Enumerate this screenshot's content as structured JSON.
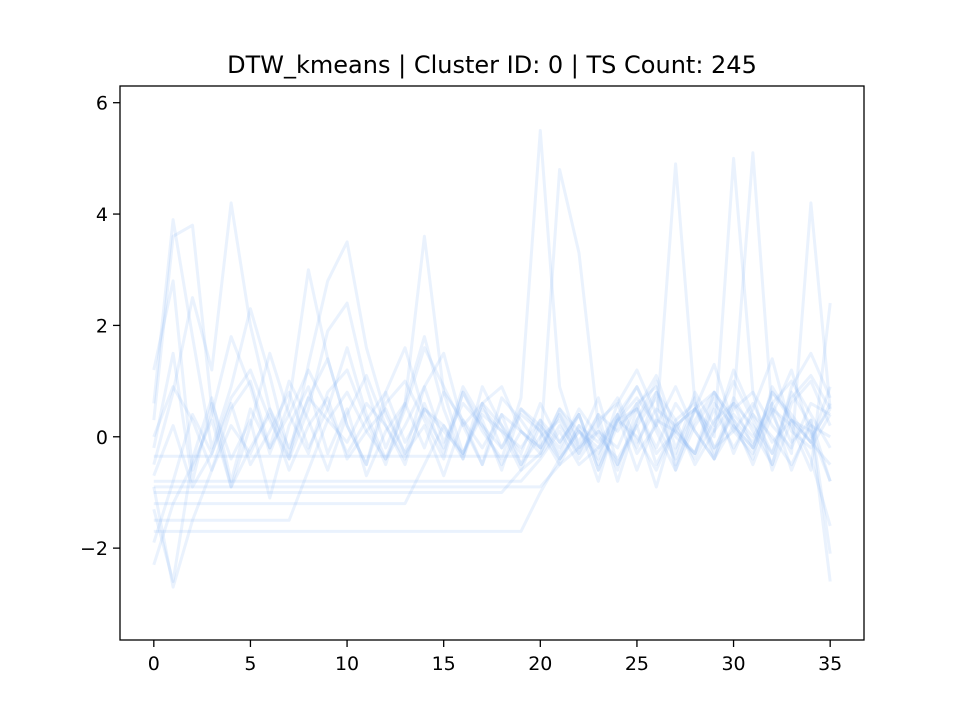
{
  "chart_data": {
    "type": "line",
    "title": "DTW_kmeans | Cluster ID: 0 | TS Count: 245",
    "xlabel": "",
    "ylabel": "",
    "xlim": [
      -1.75,
      36.75
    ],
    "ylim": [
      -3.65,
      6.3
    ],
    "xticks": [
      0,
      5,
      10,
      15,
      20,
      25,
      30,
      35
    ],
    "yticks": [
      -2,
      0,
      2,
      4,
      6
    ],
    "xtick_labels": [
      "0",
      "5",
      "10",
      "15",
      "20",
      "25",
      "30",
      "35"
    ],
    "ytick_labels": [
      "−2",
      "0",
      "2",
      "4",
      "6"
    ],
    "x": [
      0,
      1,
      2,
      3,
      4,
      5,
      6,
      7,
      8,
      9,
      10,
      11,
      12,
      13,
      14,
      15,
      16,
      17,
      18,
      19,
      20,
      21,
      22,
      23,
      24,
      25,
      26,
      27,
      28,
      29,
      30,
      31,
      32,
      33,
      34,
      35
    ],
    "line_color": "#8ab6f5",
    "line_alpha": 0.1,
    "grid": false,
    "legend": "none",
    "series": [
      {
        "values": [
          -0.35,
          -0.35,
          -0.35,
          -0.35,
          -0.35,
          -0.35,
          -0.35,
          -0.35,
          -0.35,
          -0.35,
          -0.35,
          -0.35,
          -0.35,
          -0.35,
          -0.35,
          -0.35,
          -0.35,
          -0.35,
          -0.35,
          -0.35,
          -0.35,
          0.2,
          -0.3,
          0.4,
          0.1,
          0.6,
          0.9,
          -0.2,
          0.5,
          0.8,
          0.3,
          -0.1,
          0.6,
          1.0,
          0.4,
          -0.2
        ]
      },
      {
        "values": [
          -0.8,
          -0.8,
          -0.8,
          -0.8,
          -0.8,
          -0.8,
          -0.8,
          -0.8,
          -0.8,
          -0.8,
          -0.8,
          -0.8,
          -0.8,
          -0.8,
          -0.8,
          -0.8,
          -0.8,
          -0.8,
          -0.8,
          -0.8,
          -0.4,
          0.1,
          -0.5,
          -0.2,
          0.3,
          0.7,
          0.2,
          -0.4,
          0.5,
          0.1,
          1.2,
          0.4,
          -0.3,
          0.8,
          0.2,
          0.0
        ]
      },
      {
        "values": [
          -1.0,
          -1.0,
          -1.0,
          -1.0,
          -1.0,
          -1.0,
          -1.0,
          -1.0,
          -1.0,
          -1.0,
          -1.0,
          -1.0,
          -1.0,
          -1.0,
          -1.0,
          -1.0,
          -1.0,
          -1.0,
          -1.0,
          -0.6,
          -0.3,
          0.4,
          -0.2,
          0.1,
          -0.5,
          0.3,
          0.8,
          0.0,
          -0.3,
          0.6,
          0.2,
          -0.4,
          0.9,
          0.3,
          -0.1,
          -0.5
        ]
      },
      {
        "values": [
          -1.2,
          -1.2,
          -1.2,
          -1.2,
          -1.2,
          -1.2,
          -1.2,
          -1.2,
          -1.2,
          -1.2,
          -1.2,
          -1.2,
          -1.2,
          -1.2,
          -0.5,
          0.2,
          -0.3,
          0.5,
          0.1,
          -0.2,
          0.3,
          -0.1,
          0.4,
          -0.6,
          0.2,
          0.5,
          -0.3,
          0.1,
          0.7,
          -0.2,
          0.4,
          0.0,
          0.6,
          -0.1,
          0.3,
          -0.8
        ]
      },
      {
        "values": [
          -1.5,
          -1.5,
          -1.5,
          -1.5,
          -1.5,
          -1.5,
          -1.5,
          -1.5,
          -0.6,
          0.3,
          0.8,
          0.1,
          -0.4,
          0.5,
          1.6,
          0.9,
          0.2,
          0.6,
          -0.2,
          0.4,
          0.1,
          -0.5,
          -0.2,
          0.3,
          0.6,
          -0.3,
          0.2,
          0.9,
          0.1,
          -0.4,
          0.5,
          0.8,
          0.2,
          -0.2,
          0.6,
          0.4
        ]
      },
      {
        "values": [
          -0.9,
          -0.9,
          -0.9,
          -0.9,
          -0.9,
          -0.9,
          -0.9,
          -0.9,
          -0.9,
          -0.9,
          -0.9,
          -0.9,
          -0.9,
          -0.9,
          -0.9,
          -0.9,
          -0.9,
          -0.9,
          -0.9,
          -0.9,
          -0.9,
          -0.5,
          0.2,
          -0.1,
          0.4,
          -0.2,
          0.8,
          0.3,
          -0.5,
          0.1,
          0.6,
          0.2,
          -0.3,
          0.7,
          1.1,
          0.5
        ]
      },
      {
        "values": [
          -1.7,
          -1.7,
          -1.7,
          -1.7,
          -1.7,
          -1.7,
          -1.7,
          -1.7,
          -1.7,
          -1.7,
          -1.7,
          -1.7,
          -1.7,
          -1.7,
          -1.7,
          -1.7,
          -1.7,
          -1.7,
          -1.7,
          -1.7,
          -1.0,
          -0.4,
          0.1,
          -0.3,
          0.3,
          0.0,
          -0.6,
          0.2,
          0.5,
          -0.2,
          0.1,
          0.6,
          -0.1,
          0.3,
          -0.4,
          -1.6
        ]
      },
      {
        "values": [
          0.3,
          3.6,
          3.8,
          0.5,
          -0.9,
          0.2,
          1.5,
          0.4,
          -0.3,
          0.8,
          1.2,
          0.3,
          -0.5,
          0.6,
          1.8,
          0.5,
          -0.4,
          0.9,
          0.2,
          -0.3,
          0.6,
          -0.1,
          0.4,
          -0.5,
          0.3,
          0.9,
          0.1,
          -0.6,
          0.5,
          1.3,
          0.2,
          -0.2,
          0.8,
          0.4,
          -0.1,
          0.6
        ]
      },
      {
        "values": [
          -0.5,
          0.8,
          2.5,
          1.2,
          4.2,
          2.0,
          0.5,
          -0.4,
          1.3,
          2.8,
          3.5,
          1.6,
          0.4,
          -0.3,
          0.9,
          1.5,
          0.2,
          -0.5,
          0.7,
          0.3,
          -0.2,
          0.5,
          0.1,
          -0.4,
          0.6,
          1.2,
          0.4,
          -0.3,
          0.8,
          0.2,
          1.0,
          0.3,
          -0.5,
          0.9,
          1.5,
          0.7
        ]
      },
      {
        "values": [
          -1.3,
          -2.6,
          -0.4,
          0.7,
          -0.8,
          0.5,
          -0.2,
          1.0,
          0.3,
          -0.6,
          0.4,
          1.1,
          0.2,
          -0.5,
          0.6,
          -0.3,
          0.8,
          0.1,
          -0.4,
          0.7,
          5.5,
          0.9,
          -0.2,
          0.4,
          -0.8,
          0.3,
          1.0,
          -0.6,
          0.2,
          0.7,
          -0.3,
          0.5,
          1.4,
          0.1,
          -0.2,
          0.4
        ]
      },
      {
        "values": [
          -0.7,
          0.2,
          -0.9,
          -0.3,
          0.6,
          -0.5,
          0.1,
          0.8,
          -0.2,
          0.5,
          1.6,
          0.4,
          -0.4,
          0.2,
          0.9,
          -0.1,
          0.6,
          0.2,
          -0.5,
          0.1,
          -0.2,
          4.8,
          3.3,
          0.2,
          -0.6,
          0.5,
          1.1,
          0.1,
          -0.3,
          0.8,
          0.3,
          -0.5,
          0.4,
          1.2,
          0.0,
          0.5
        ]
      },
      {
        "values": [
          1.2,
          2.8,
          -0.6,
          0.4,
          1.8,
          0.9,
          -0.3,
          0.6,
          3.0,
          1.4,
          0.2,
          -0.5,
          0.8,
          1.6,
          0.4,
          -0.2,
          0.9,
          0.3,
          -0.6,
          0.5,
          0.1,
          -0.4,
          0.2,
          -0.8,
          0.4,
          0.9,
          0.2,
          4.9,
          0.6,
          -0.3,
          0.7,
          0.1,
          -0.5,
          0.6,
          1.0,
          0.2
        ]
      },
      {
        "values": [
          -2.3,
          -1.2,
          -0.5,
          0.3,
          -0.9,
          -0.2,
          0.4,
          -0.6,
          0.2,
          0.7,
          -0.4,
          0.1,
          0.5,
          -0.3,
          0.2,
          -0.7,
          0.3,
          -0.2,
          0.4,
          -0.5,
          0.0,
          0.3,
          -0.4,
          0.1,
          -0.2,
          0.6,
          -0.5,
          0.2,
          0.5,
          0.0,
          5.0,
          0.8,
          -0.6,
          0.3,
          0.1,
          -0.8
        ]
      },
      {
        "values": [
          0.6,
          3.9,
          1.8,
          -0.2,
          0.9,
          2.3,
          1.1,
          -0.3,
          0.7,
          1.4,
          0.2,
          -0.5,
          0.6,
          1.0,
          0.3,
          -0.4,
          0.8,
          0.2,
          -0.2,
          0.5,
          0.2,
          -0.3,
          0.4,
          -0.6,
          0.3,
          0.5,
          -0.2,
          0.6,
          0.1,
          -0.4,
          0.6,
          5.1,
          0.4,
          -0.3,
          4.2,
          0.5
        ]
      },
      {
        "values": [
          -1.9,
          -0.8,
          0.4,
          -0.3,
          0.7,
          1.2,
          0.3,
          -0.4,
          0.5,
          1.9,
          2.4,
          0.9,
          -0.2,
          0.6,
          3.6,
          0.8,
          -0.3,
          0.4,
          0.1,
          -0.6,
          0.2,
          -0.2,
          0.5,
          0.0,
          -0.4,
          0.2,
          0.7,
          -0.5,
          0.3,
          0.8,
          0.1,
          -0.3,
          0.5,
          0.2,
          -0.6,
          2.4
        ]
      },
      {
        "values": [
          -0.2,
          1.5,
          -0.8,
          0.6,
          -0.4,
          0.3,
          -1.1,
          0.2,
          0.9,
          -0.3,
          0.5,
          -0.7,
          0.1,
          0.6,
          -0.2,
          0.8,
          0.3,
          -0.5,
          0.4,
          0.1,
          -0.3,
          0.5,
          -0.1,
          0.7,
          -0.5,
          0.2,
          -0.9,
          0.3,
          0.6,
          -0.4,
          0.2,
          -0.2,
          0.5,
          -0.6,
          0.3,
          -2.1
        ]
      },
      {
        "values": [
          -0.9,
          -2.7,
          -1.5,
          -0.6,
          0.2,
          -0.3,
          0.5,
          -0.2,
          0.7,
          0.3,
          -0.1,
          0.6,
          0.2,
          -0.4,
          0.5,
          0.1,
          -0.3,
          0.6,
          0.2,
          -0.5,
          0.3,
          -0.4,
          0.1,
          -0.2,
          0.4,
          -0.6,
          0.3,
          0.1,
          -0.3,
          0.5,
          -0.2,
          0.4,
          0.0,
          -0.5,
          0.2,
          -2.6
        ]
      },
      {
        "values": [
          0.0,
          0.9,
          0.3,
          -0.6,
          0.5,
          1.0,
          -0.2,
          0.4,
          1.2,
          0.5,
          -0.3,
          0.3,
          0.8,
          -0.1,
          0.5,
          0.2,
          -0.4,
          0.6,
          0.9,
          0.1,
          -0.2,
          0.4,
          -0.3,
          0.2,
          0.7,
          -0.1,
          0.5,
          0.2,
          -0.4,
          0.3,
          0.6,
          -0.2,
          0.8,
          0.3,
          -0.1,
          0.9
        ]
      }
    ]
  }
}
